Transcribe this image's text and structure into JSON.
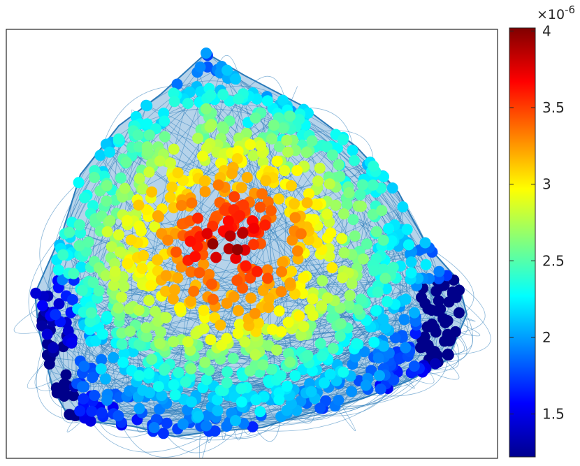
{
  "chart_data": {
    "type": "scatter",
    "subtype": "network-graph-node-scatter",
    "title": "",
    "xlabel": "",
    "ylabel": "",
    "axes_ticks": false,
    "grid": false,
    "colormap": "jet",
    "colorbar": {
      "location": "right",
      "min": 1.22,
      "max": 4.02,
      "ticks": [
        1.5,
        2,
        2.5,
        3,
        3.5,
        4
      ],
      "tick_labels": [
        "1.5",
        "2",
        "2.5",
        "3",
        "3.5",
        "4"
      ],
      "exponent_label": "×10",
      "exponent_power": "-6"
    },
    "edge_color": "#2b7bba",
    "node_value_summary": {
      "core_max": 4.0,
      "periphery_min": 1.3,
      "note_values": "node color = value ×10^-6, highest near center, lowest at left and right extremes"
    }
  }
}
